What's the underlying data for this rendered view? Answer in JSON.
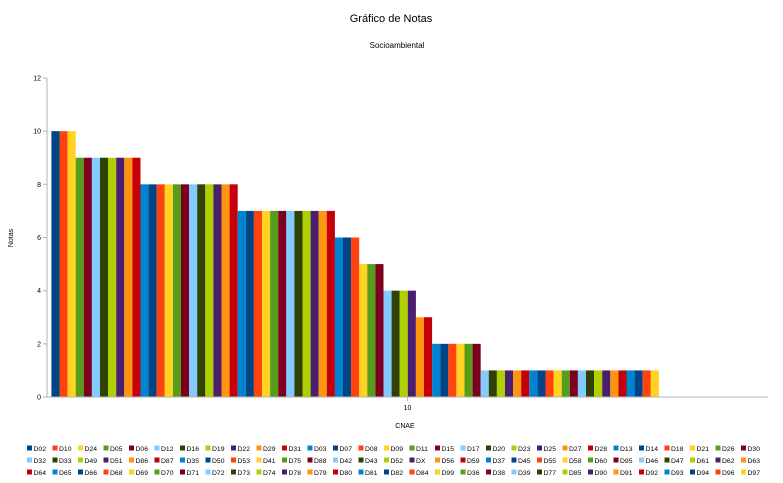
{
  "chart_data": {
    "type": "bar",
    "title": "Gráfico de Notas",
    "subtitle": "Socioambiental",
    "xlabel": "CNAE",
    "ylabel": "Notas",
    "categories": [
      "10"
    ],
    "ylim": [
      0,
      12
    ],
    "yticks": [
      "0",
      "2",
      "4",
      "6",
      "8",
      "10",
      "12"
    ],
    "grid": false,
    "legend_position": "bottom",
    "series": [
      {
        "name": "D02",
        "values": [
          10
        ],
        "color": "#004586"
      },
      {
        "name": "D10",
        "values": [
          10
        ],
        "color": "#ff420e"
      },
      {
        "name": "D24",
        "values": [
          10
        ],
        "color": "#ffd320"
      },
      {
        "name": "D05",
        "values": [
          9
        ],
        "color": "#579d1c"
      },
      {
        "name": "D06",
        "values": [
          9
        ],
        "color": "#7e0021"
      },
      {
        "name": "D12",
        "values": [
          9
        ],
        "color": "#83caff"
      },
      {
        "name": "D16",
        "values": [
          9
        ],
        "color": "#314004"
      },
      {
        "name": "D19",
        "values": [
          9
        ],
        "color": "#aecf00"
      },
      {
        "name": "D22",
        "values": [
          9
        ],
        "color": "#4b1f6f"
      },
      {
        "name": "D29",
        "values": [
          9
        ],
        "color": "#ff950e"
      },
      {
        "name": "D31",
        "values": [
          9
        ],
        "color": "#c5000b"
      },
      {
        "name": "D03",
        "values": [
          8
        ],
        "color": "#0084d1"
      },
      {
        "name": "D07",
        "values": [
          8
        ],
        "color": "#004586"
      },
      {
        "name": "D08",
        "values": [
          8
        ],
        "color": "#ff420e"
      },
      {
        "name": "D09",
        "values": [
          8
        ],
        "color": "#ffd320"
      },
      {
        "name": "D11",
        "values": [
          8
        ],
        "color": "#579d1c"
      },
      {
        "name": "D15",
        "values": [
          8
        ],
        "color": "#7e0021"
      },
      {
        "name": "D17",
        "values": [
          8
        ],
        "color": "#83caff"
      },
      {
        "name": "D20",
        "values": [
          8
        ],
        "color": "#314004"
      },
      {
        "name": "D23",
        "values": [
          8
        ],
        "color": "#aecf00"
      },
      {
        "name": "D25",
        "values": [
          8
        ],
        "color": "#4b1f6f"
      },
      {
        "name": "D27",
        "values": [
          8
        ],
        "color": "#ff950e"
      },
      {
        "name": "D28",
        "values": [
          8
        ],
        "color": "#c5000b"
      },
      {
        "name": "D13",
        "values": [
          7
        ],
        "color": "#0084d1"
      },
      {
        "name": "D14",
        "values": [
          7
        ],
        "color": "#004586"
      },
      {
        "name": "D18",
        "values": [
          7
        ],
        "color": "#ff420e"
      },
      {
        "name": "D21",
        "values": [
          7
        ],
        "color": "#ffd320"
      },
      {
        "name": "D26",
        "values": [
          7
        ],
        "color": "#579d1c"
      },
      {
        "name": "D30",
        "values": [
          7
        ],
        "color": "#7e0021"
      },
      {
        "name": "D32",
        "values": [
          7
        ],
        "color": "#83caff"
      },
      {
        "name": "D33",
        "values": [
          7
        ],
        "color": "#314004"
      },
      {
        "name": "D49",
        "values": [
          7
        ],
        "color": "#aecf00"
      },
      {
        "name": "D51",
        "values": [
          7
        ],
        "color": "#4b1f6f"
      },
      {
        "name": "D86",
        "values": [
          7
        ],
        "color": "#ff950e"
      },
      {
        "name": "D87",
        "values": [
          7
        ],
        "color": "#c5000b"
      },
      {
        "name": "D35",
        "values": [
          6
        ],
        "color": "#0084d1"
      },
      {
        "name": "D50",
        "values": [
          6
        ],
        "color": "#004586"
      },
      {
        "name": "D53",
        "values": [
          6
        ],
        "color": "#ff420e"
      },
      {
        "name": "D41",
        "values": [
          5
        ],
        "color": "#ffd320"
      },
      {
        "name": "D75",
        "values": [
          5
        ],
        "color": "#579d1c"
      },
      {
        "name": "D88",
        "values": [
          5
        ],
        "color": "#7e0021"
      },
      {
        "name": "D42",
        "values": [
          4
        ],
        "color": "#83caff"
      },
      {
        "name": "D43",
        "values": [
          4
        ],
        "color": "#314004"
      },
      {
        "name": "D52",
        "values": [
          4
        ],
        "color": "#aecf00"
      },
      {
        "name": "DX",
        "values": [
          4
        ],
        "color": "#4b1f6f"
      },
      {
        "name": "D56",
        "values": [
          3
        ],
        "color": "#ff950e"
      },
      {
        "name": "D59",
        "values": [
          3
        ],
        "color": "#c5000b"
      },
      {
        "name": "D37",
        "values": [
          2
        ],
        "color": "#0084d1"
      },
      {
        "name": "D45",
        "values": [
          2
        ],
        "color": "#004586"
      },
      {
        "name": "D55",
        "values": [
          2
        ],
        "color": "#ff420e"
      },
      {
        "name": "D58",
        "values": [
          2
        ],
        "color": "#ffd320"
      },
      {
        "name": "D60",
        "values": [
          2
        ],
        "color": "#579d1c"
      },
      {
        "name": "D95",
        "values": [
          2
        ],
        "color": "#7e0021"
      },
      {
        "name": "D46",
        "values": [
          1
        ],
        "color": "#83caff"
      },
      {
        "name": "D47",
        "values": [
          1
        ],
        "color": "#314004"
      },
      {
        "name": "D61",
        "values": [
          1
        ],
        "color": "#aecf00"
      },
      {
        "name": "D62",
        "values": [
          1
        ],
        "color": "#4b1f6f"
      },
      {
        "name": "D63",
        "values": [
          1
        ],
        "color": "#ff950e"
      },
      {
        "name": "D64",
        "values": [
          1
        ],
        "color": "#c5000b"
      },
      {
        "name": "D65",
        "values": [
          1
        ],
        "color": "#0084d1"
      },
      {
        "name": "D66",
        "values": [
          1
        ],
        "color": "#004586"
      },
      {
        "name": "D68",
        "values": [
          1
        ],
        "color": "#ff420e"
      },
      {
        "name": "D69",
        "values": [
          1
        ],
        "color": "#ffd320"
      },
      {
        "name": "D70",
        "values": [
          1
        ],
        "color": "#579d1c"
      },
      {
        "name": "D71",
        "values": [
          1
        ],
        "color": "#7e0021"
      },
      {
        "name": "D72",
        "values": [
          1
        ],
        "color": "#83caff"
      },
      {
        "name": "D73",
        "values": [
          1
        ],
        "color": "#314004"
      },
      {
        "name": "D74",
        "values": [
          1
        ],
        "color": "#aecf00"
      },
      {
        "name": "D78",
        "values": [
          1
        ],
        "color": "#4b1f6f"
      },
      {
        "name": "D79",
        "values": [
          1
        ],
        "color": "#ff950e"
      },
      {
        "name": "D80",
        "values": [
          1
        ],
        "color": "#c5000b"
      },
      {
        "name": "D81",
        "values": [
          1
        ],
        "color": "#0084d1"
      },
      {
        "name": "D82",
        "values": [
          1
        ],
        "color": "#004586"
      },
      {
        "name": "D84",
        "values": [
          1
        ],
        "color": "#ff420e"
      },
      {
        "name": "D99",
        "values": [
          1
        ],
        "color": "#ffd320"
      },
      {
        "name": "D36",
        "values": [
          0
        ],
        "color": "#579d1c"
      },
      {
        "name": "D38",
        "values": [
          0
        ],
        "color": "#7e0021"
      },
      {
        "name": "D39",
        "values": [
          0
        ],
        "color": "#83caff"
      },
      {
        "name": "D77",
        "values": [
          0
        ],
        "color": "#314004"
      },
      {
        "name": "D85",
        "values": [
          0
        ],
        "color": "#aecf00"
      },
      {
        "name": "D90",
        "values": [
          0
        ],
        "color": "#4b1f6f"
      },
      {
        "name": "D91",
        "values": [
          0
        ],
        "color": "#ff950e"
      },
      {
        "name": "D92",
        "values": [
          0
        ],
        "color": "#c5000b"
      },
      {
        "name": "D93",
        "values": [
          0
        ],
        "color": "#0084d1"
      },
      {
        "name": "D94",
        "values": [
          0
        ],
        "color": "#004586"
      },
      {
        "name": "D96",
        "values": [
          0
        ],
        "color": "#ff420e"
      },
      {
        "name": "D97",
        "values": [
          0
        ],
        "color": "#ffd320"
      }
    ]
  }
}
